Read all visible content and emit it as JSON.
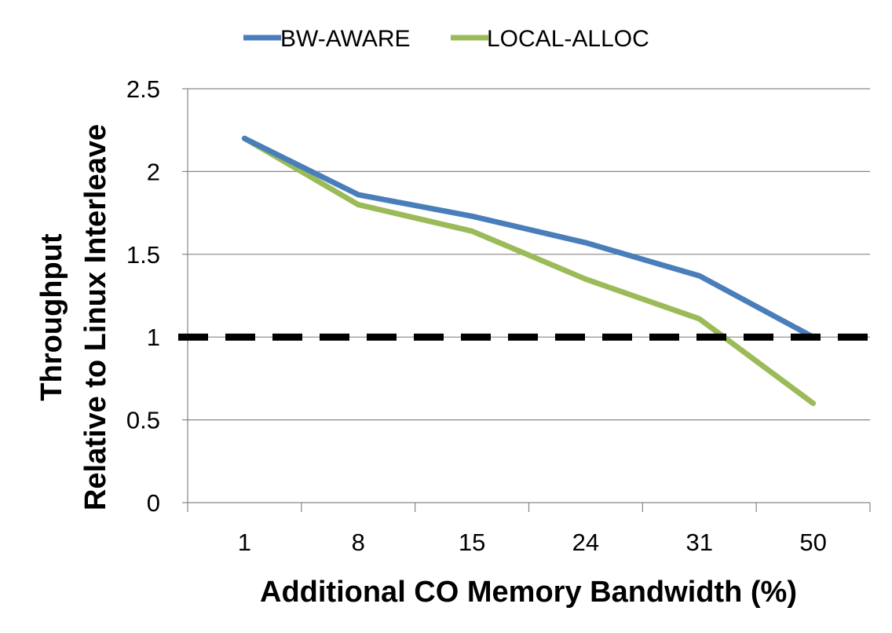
{
  "chart_data": {
    "type": "line",
    "title": "",
    "xlabel": "Additional CO Memory Bandwidth (%)",
    "ylabel": [
      "Throughput",
      "Relative to Linux Interleave"
    ],
    "categories": [
      "1",
      "8",
      "15",
      "24",
      "31",
      "50"
    ],
    "ylim": [
      0,
      2.5
    ],
    "yticks": [
      "0",
      "0.5",
      "1",
      "1.5",
      "2",
      "2.5"
    ],
    "grid": "horizontal",
    "legend_position": "top",
    "series": [
      {
        "name": "BW-AWARE",
        "color": "#4a7ebb",
        "values": [
          2.2,
          1.86,
          1.73,
          1.57,
          1.37,
          1.0
        ]
      },
      {
        "name": "LOCAL-ALLOC",
        "color": "#9bbb59",
        "values": [
          2.2,
          1.8,
          1.64,
          1.35,
          1.11,
          0.6
        ]
      }
    ],
    "reference_line": {
      "value": 1,
      "style": "dashed",
      "color": "#000000"
    }
  }
}
